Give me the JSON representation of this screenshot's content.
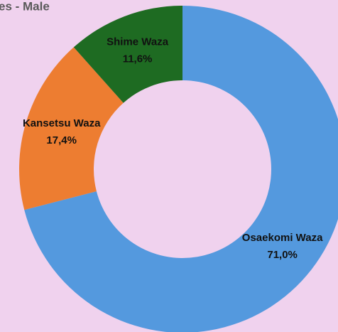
{
  "chart_data": {
    "type": "donut",
    "title": "es - Male",
    "categories": [
      "Osaekomi Waza",
      "Kansetsu Waza",
      "Shime Waza"
    ],
    "values": [
      71.0,
      17.4,
      11.6
    ],
    "value_labels": [
      "71,0%",
      "17,4%",
      "11,6%"
    ],
    "colors": [
      "#5499de",
      "#ed7d31",
      "#1e6b22"
    ]
  }
}
